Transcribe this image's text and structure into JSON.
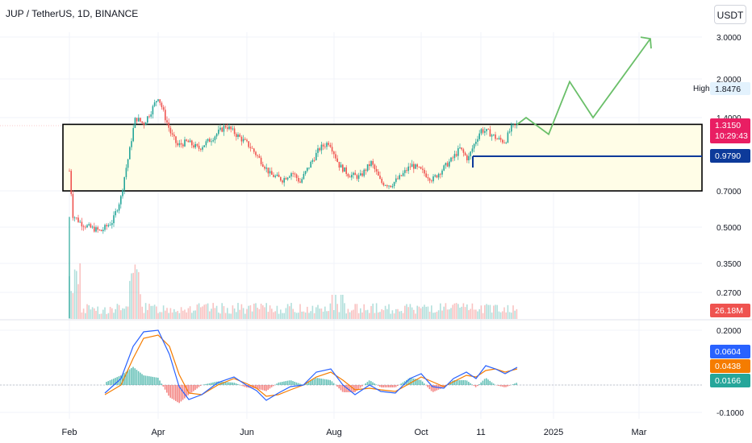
{
  "header": {
    "title": "JUP / TetherUS, 1D, BINANCE",
    "unit": "USDT"
  },
  "colors": {
    "up": "#26a69a",
    "down": "#ef5350",
    "zone_fill": "#fffde7",
    "zone_border": "#000000",
    "support": "#0d3a9a",
    "arrow": "#6abf69",
    "macd": "#2962ff",
    "signal": "#f57c00"
  },
  "chart_data": {
    "type": "candlestick",
    "x_ticks": [
      "Feb",
      "Apr",
      "Jun",
      "Aug",
      "Oct",
      "11",
      "2025",
      "Mar"
    ],
    "y_ticks": [
      "3.0000",
      "2.0000",
      "1.4000",
      "0.7000",
      "0.5000",
      "0.3500",
      "0.2700"
    ],
    "zone": {
      "low": 0.7,
      "high": 1.315
    },
    "support_level": 0.979,
    "projection": [
      1.315,
      1.4,
      1.2,
      1.95,
      1.4,
      2.95
    ],
    "last_price": "1.3150",
    "countdown": "10:29:43",
    "support_label": "0.9790",
    "high_label": "High",
    "high_value": "1.8476",
    "volume_label": "26.18M",
    "macd": {
      "y_ticks": [
        "0.2000",
        "-0.1000"
      ],
      "macd_value": "0.0604",
      "signal_value": "0.0438",
      "hist_value": "0.0166"
    }
  }
}
